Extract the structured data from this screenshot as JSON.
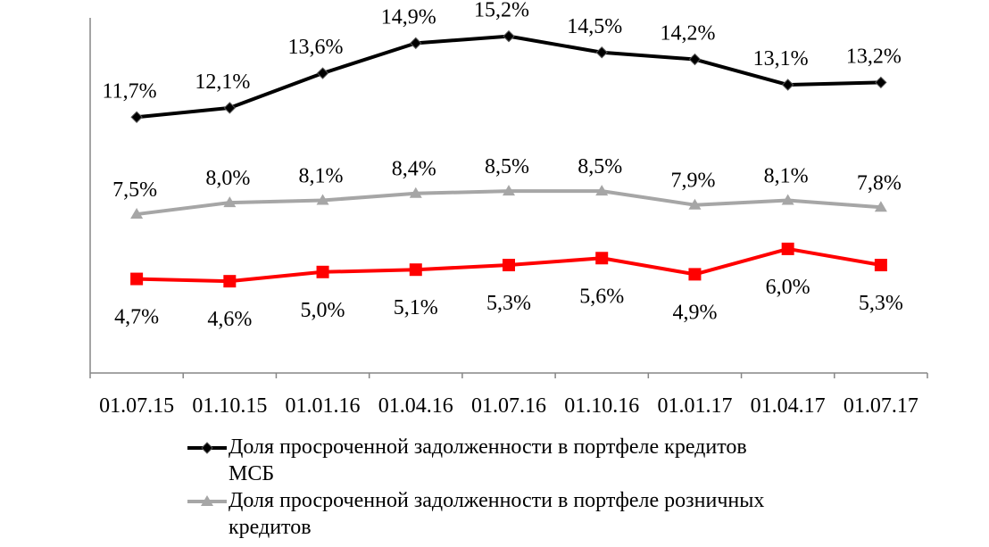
{
  "chart_data": {
    "type": "line",
    "categories": [
      "01.07.15",
      "01.10.15",
      "01.01.16",
      "01.04.16",
      "01.07.16",
      "01.10.16",
      "01.01.17",
      "01.04.17",
      "01.07.17"
    ],
    "series": [
      {
        "name": "Доля просроченной задолженности в портфеле кредитов МСБ",
        "legend_lines": [
          "Доля просроченной задолженности в портфеле кредитов",
          "МСБ"
        ],
        "color": "#000000",
        "marker": "diamond",
        "values": [
          11.7,
          12.1,
          13.6,
          14.9,
          15.2,
          14.5,
          14.2,
          13.1,
          13.2
        ],
        "labels": [
          "11,7%",
          "12,1%",
          "13,6%",
          "14,9%",
          "15,2%",
          "14,5%",
          "14,2%",
          "13,1%",
          "13,2%"
        ]
      },
      {
        "name": "Доля просроченной задолженности в портфеле розничных кредитов",
        "legend_lines": [
          "Доля просроченной задолженности в портфеле розничных",
          "кредитов"
        ],
        "color": "#a6a6a6",
        "marker": "triangle",
        "values": [
          7.5,
          8.0,
          8.1,
          8.4,
          8.5,
          8.5,
          7.9,
          8.1,
          7.8
        ],
        "labels": [
          "7,5%",
          "8,0%",
          "8,1%",
          "8,4%",
          "8,5%",
          "8,5%",
          "7,9%",
          "8,1%",
          "7,8%"
        ]
      },
      {
        "name": "",
        "color": "#ff0000",
        "marker": "square",
        "values": [
          4.7,
          4.6,
          5.0,
          5.1,
          5.3,
          5.6,
          4.9,
          6.0,
          5.3
        ],
        "labels": [
          "4,7%",
          "4,6%",
          "5,0%",
          "5,1%",
          "5,3%",
          "5,6%",
          "4,9%",
          "6,0%",
          "5,3%"
        ]
      }
    ],
    "title": "",
    "xlabel": "",
    "ylabel": "",
    "legend_position": "bottom",
    "grid": false
  }
}
